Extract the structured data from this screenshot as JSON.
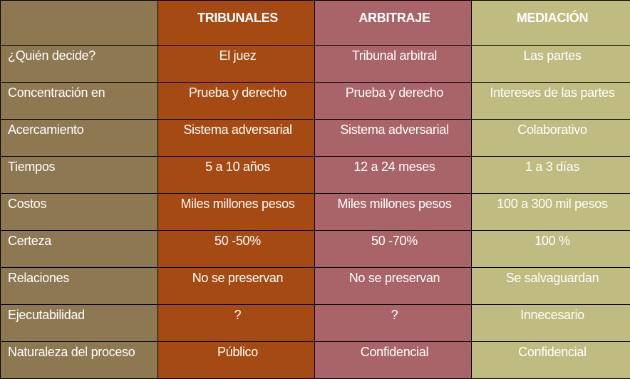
{
  "headers": [
    "",
    "TRIBUNALES",
    "ARBITRAJE",
    "MEDIACIÓN"
  ],
  "rows": [
    [
      "¿Quién decide?",
      "El juez",
      "Tribunal arbitral",
      "Las partes"
    ],
    [
      "Concentración en",
      "Prueba y derecho",
      "Prueba y derecho",
      "Intereses de las partes"
    ],
    [
      "Acercamiento",
      "Sistema adversarial",
      "Sistema adversarial",
      "Colaborativo"
    ],
    [
      "Tiempos",
      "5 a 10 años",
      "12 a 24 meses",
      "1 a 3 días"
    ],
    [
      "Costos",
      "Miles millones pesos",
      "Miles millones pesos",
      "100 a 300 mil pesos"
    ],
    [
      "Certeza",
      "50 -50%",
      "50 -70%",
      "100 %"
    ],
    [
      "Relaciones",
      "No se preservan",
      "No se preservan",
      "Se salvaguardan"
    ],
    [
      "Ejecutabilidad",
      "?",
      "?",
      "Innecesario"
    ],
    [
      "Naturaleza del proceso",
      "Público",
      "Confidencial",
      "Confidencial"
    ]
  ],
  "colors": {
    "label_column": "#8e7852",
    "tribunales_column": "#a44a12",
    "arbitraje_column": "#a86468",
    "mediacion_column": "#bfbb81",
    "text": "#ffffff"
  }
}
